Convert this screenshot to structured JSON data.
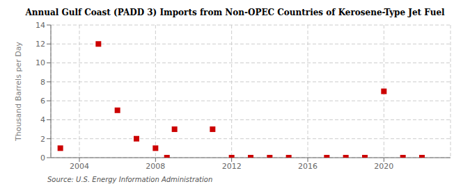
{
  "chart_data": {
    "type": "scatter",
    "title": "Annual Gulf Coast (PADD 3) Imports from Non-OPEC Countries of Kerosene-Type Jet Fuel",
    "y_label": "Thousand Barrels per Day",
    "annotations": [
      "Source: U.S. Energy Information Administration"
    ],
    "x": [
      2003,
      2005,
      2006,
      2007,
      2008,
      2008.6,
      2009,
      2011,
      2012,
      2013,
      2014,
      2015,
      2017,
      2018,
      2019,
      2020,
      2021,
      2022
    ],
    "values": [
      1,
      12,
      5,
      2,
      1,
      0,
      3,
      3,
      0,
      0,
      0,
      0,
      0,
      0,
      0,
      7,
      0,
      0
    ],
    "color": "#cc0000",
    "marker": "square",
    "xlim": [
      2002.5,
      2023.5
    ],
    "ylim": [
      0,
      14
    ],
    "xticks": [
      2004,
      2008,
      2012,
      2016,
      2020
    ],
    "yticks": [
      0,
      2,
      4,
      6,
      8,
      10,
      12,
      14
    ],
    "grid": true
  }
}
